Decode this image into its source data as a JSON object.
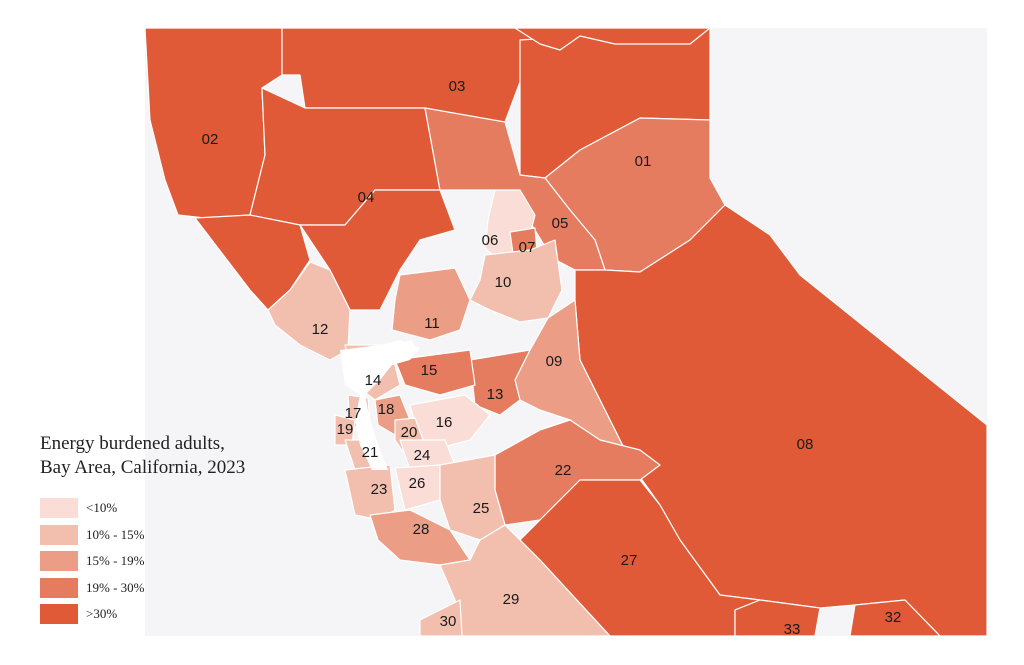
{
  "legend": {
    "title_line1": "Energy burdened adults,",
    "title_line2": "Bay Area, California, 2023",
    "items": [
      {
        "label": "<10%",
        "color": "#f9ddd6"
      },
      {
        "label": "10% - 15%",
        "color": "#f2bfae"
      },
      {
        "label": "15% - 19%",
        "color": "#eb9e85"
      },
      {
        "label": "19% - 30%",
        "color": "#e57b5f"
      },
      {
        "label": ">30%",
        "color": "#e05a38"
      }
    ]
  },
  "map": {
    "state_fill": "#f5f5f7",
    "water_fill": "#ffffff",
    "districts": [
      {
        "id": "01",
        "burden_class": "19% - 30%"
      },
      {
        "id": "02",
        "burden_class": ">30%"
      },
      {
        "id": "03",
        "burden_class": ">30%"
      },
      {
        "id": "04",
        "burden_class": ">30%"
      },
      {
        "id": "05",
        "burden_class": "19% - 30%"
      },
      {
        "id": "06",
        "burden_class": "<10%"
      },
      {
        "id": "07",
        "burden_class": "19% - 30%"
      },
      {
        "id": "08",
        "burden_class": ">30%"
      },
      {
        "id": "09",
        "burden_class": "15% - 19%"
      },
      {
        "id": "10",
        "burden_class": "10% - 15%"
      },
      {
        "id": "11",
        "burden_class": "15% - 19%"
      },
      {
        "id": "12",
        "burden_class": "10% - 15%"
      },
      {
        "id": "13",
        "burden_class": "19% - 30%"
      },
      {
        "id": "14",
        "burden_class": "10% - 15%"
      },
      {
        "id": "15",
        "burden_class": "19% - 30%"
      },
      {
        "id": "16",
        "burden_class": "<10%"
      },
      {
        "id": "17",
        "burden_class": "10% - 15%"
      },
      {
        "id": "18",
        "burden_class": "15% - 19%"
      },
      {
        "id": "19",
        "burden_class": "10% - 15%"
      },
      {
        "id": "20",
        "burden_class": "10% - 15%"
      },
      {
        "id": "21",
        "burden_class": "10% - 15%"
      },
      {
        "id": "22",
        "burden_class": "19% - 30%"
      },
      {
        "id": "23",
        "burden_class": "10% - 15%"
      },
      {
        "id": "24",
        "burden_class": "<10%"
      },
      {
        "id": "25",
        "burden_class": "10% - 15%"
      },
      {
        "id": "26",
        "burden_class": "<10%"
      },
      {
        "id": "27",
        "burden_class": ">30%"
      },
      {
        "id": "28",
        "burden_class": "15% - 19%"
      },
      {
        "id": "29",
        "burden_class": "10% - 15%"
      },
      {
        "id": "30",
        "burden_class": "10% - 15%"
      },
      {
        "id": "32",
        "burden_class": ">30%"
      },
      {
        "id": "33",
        "burden_class": ">30%"
      }
    ]
  }
}
